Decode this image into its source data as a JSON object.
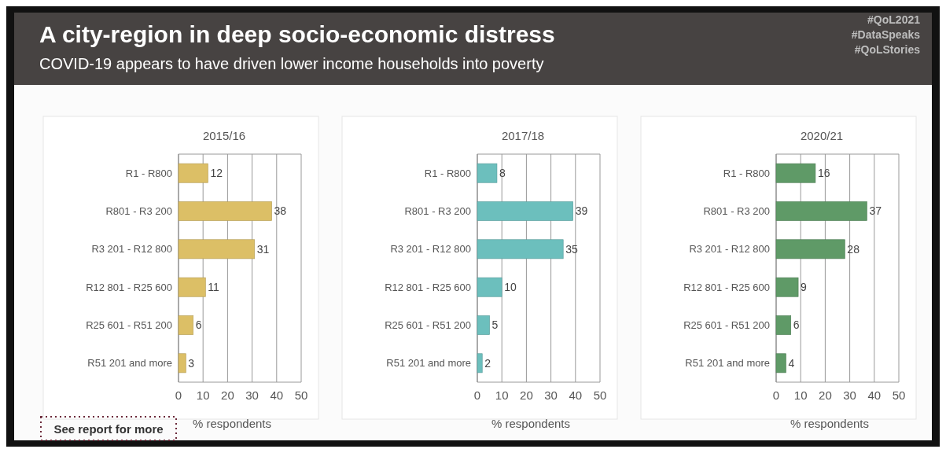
{
  "chart_data": [
    {
      "type": "bar",
      "orientation": "horizontal",
      "title": "A city-region in deep socio-economic distress",
      "subtitle": "COVID-19 appears to have driven lower income households into poverty",
      "annotations": [
        "#QoL2021",
        "#DataSpeaks",
        "#QoLStories",
        "See report for more"
      ],
      "xlabel": "% respondents",
      "categories": [
        "R1 - R800",
        "R801 - R3 200",
        "R3 201 - R12 800",
        "R12 801 - R25 600",
        "R25 601 - R51 200",
        "R51 201 and more"
      ],
      "series": [
        {
          "name": "2015/16",
          "color": "#dcbf66",
          "values": [
            12,
            38,
            31,
            11,
            6,
            3
          ]
        }
      ],
      "xlim": [
        0,
        50
      ],
      "xticks": [
        0,
        10,
        20,
        30,
        40,
        50
      ],
      "grid": "x",
      "data_labels": true
    },
    {
      "type": "bar",
      "orientation": "horizontal",
      "xlabel": "% respondents",
      "categories": [
        "R1 - R800",
        "R801 - R3 200",
        "R3 201 - R12 800",
        "R12 801 - R25 600",
        "R25 601 - R51 200",
        "R51 201 and more"
      ],
      "series": [
        {
          "name": "2017/18",
          "color": "#6cbfbd",
          "values": [
            8,
            39,
            35,
            10,
            5,
            2
          ]
        }
      ],
      "xlim": [
        0,
        50
      ],
      "xticks": [
        0,
        10,
        20,
        30,
        40,
        50
      ],
      "grid": "x",
      "data_labels": true
    },
    {
      "type": "bar",
      "orientation": "horizontal",
      "xlabel": "% respondents",
      "categories": [
        "R1 - R800",
        "R801 - R3 200",
        "R3 201 - R12 800",
        "R12 801 - R25 600",
        "R25 601 - R51 200",
        "R51 201 and more"
      ],
      "series": [
        {
          "name": "2020/21",
          "color": "#5f9a67",
          "values": [
            16,
            37,
            28,
            9,
            6,
            4
          ]
        }
      ],
      "xlim": [
        0,
        50
      ],
      "xticks": [
        0,
        10,
        20,
        30,
        40,
        50
      ],
      "grid": "x",
      "data_labels": true
    }
  ]
}
